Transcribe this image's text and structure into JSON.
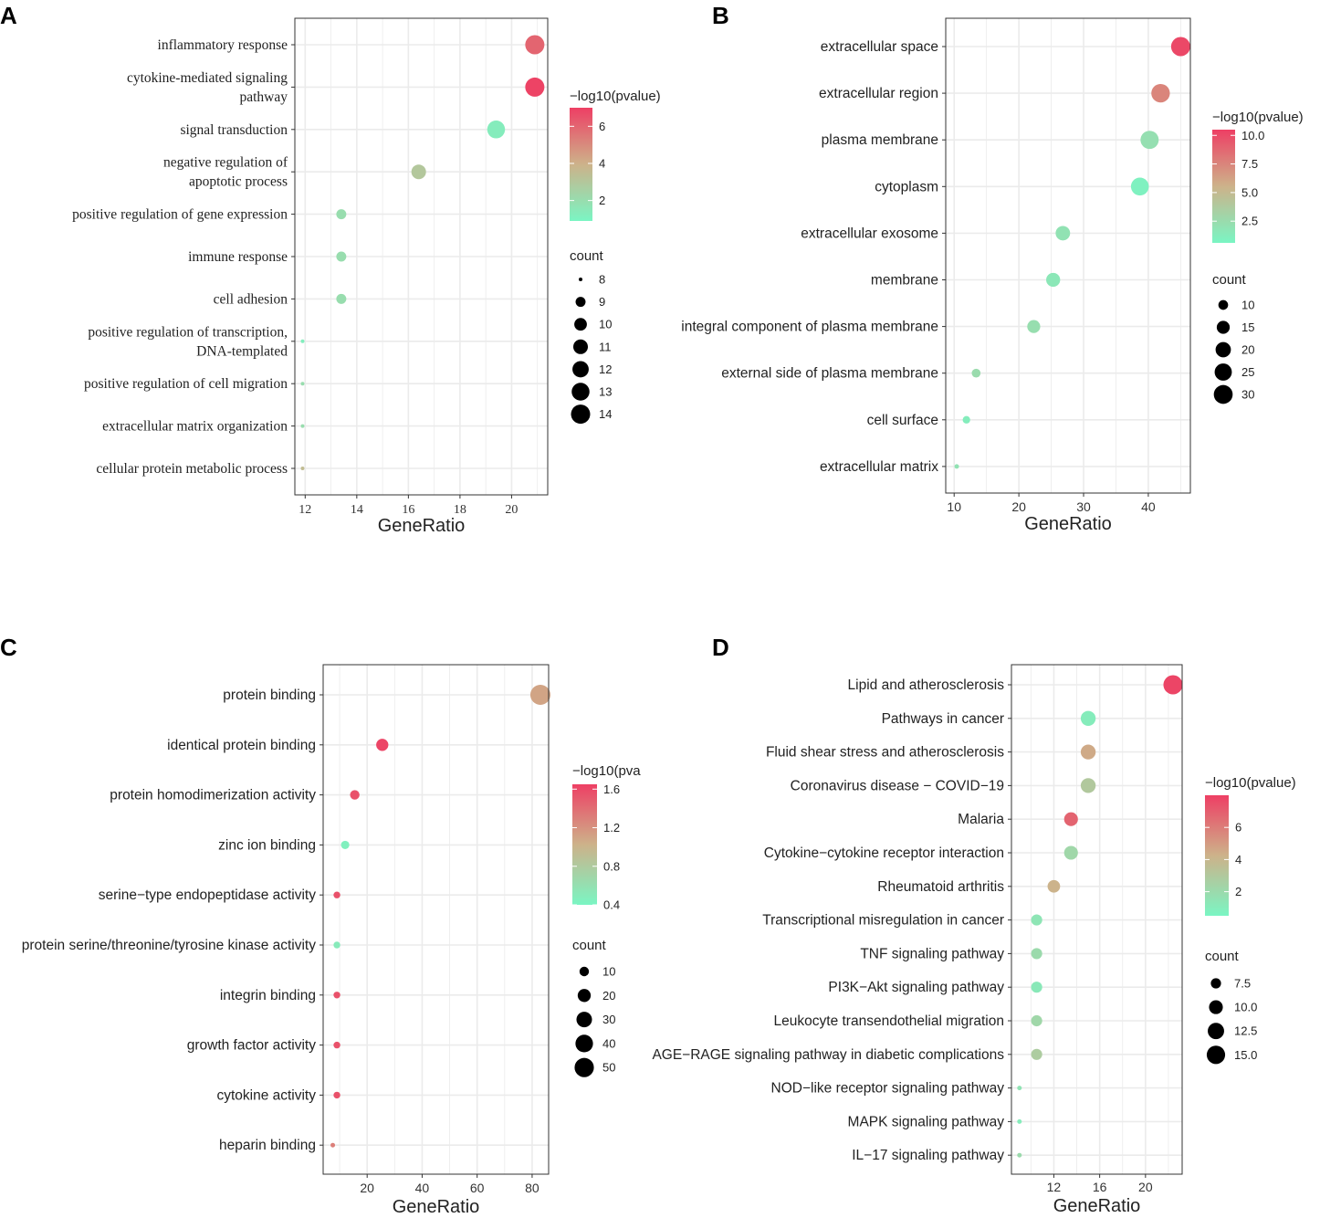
{
  "colors": {
    "low": "#7af5c3",
    "high": "#ee3f64",
    "grid": "#ebebeb",
    "border": "#333333"
  },
  "chart_data": [
    {
      "type": "scatter",
      "panel": "A",
      "font": "serif",
      "xlabel": "GeneRatio",
      "xlim": [
        11.6,
        21.4
      ],
      "xticks": [
        12,
        14,
        16,
        18,
        20
      ],
      "categories": [
        {
          "lines": [
            "inflammatory response"
          ],
          "x": 20.9,
          "count": 14,
          "logp": 6.0
        },
        {
          "lines": [
            "cytokine-mediated signaling",
            "pathway"
          ],
          "x": 20.9,
          "count": 14,
          "logp": 6.9
        },
        {
          "lines": [
            "signal transduction"
          ],
          "x": 19.4,
          "count": 13,
          "logp": 1.3
        },
        {
          "lines": [
            "negative regulation of",
            "apoptotic process"
          ],
          "x": 16.4,
          "count": 11,
          "logp": 3.0
        },
        {
          "lines": [
            "positive regulation of gene expression"
          ],
          "x": 13.4,
          "count": 9,
          "logp": 2.0
        },
        {
          "lines": [
            "immune response"
          ],
          "x": 13.4,
          "count": 9,
          "logp": 2.0
        },
        {
          "lines": [
            "cell adhesion"
          ],
          "x": 13.4,
          "count": 9,
          "logp": 2.0
        },
        {
          "lines": [
            "positive regulation of transcription,",
            "DNA-templated"
          ],
          "x": 11.9,
          "count": 8,
          "logp": 1.2
        },
        {
          "lines": [
            "positive regulation of cell migration"
          ],
          "x": 11.9,
          "count": 8,
          "logp": 2.0
        },
        {
          "lines": [
            "extracellular matrix organization"
          ],
          "x": 11.9,
          "count": 8,
          "logp": 2.0
        },
        {
          "lines": [
            "cellular protein metabolic process"
          ],
          "x": 11.9,
          "count": 8,
          "logp": 3.5
        }
      ],
      "color_legend": {
        "title": "−log10(pvalue)",
        "min": 0.9,
        "max": 7.0,
        "ticks": [
          {
            "v": 6,
            "label": "6"
          },
          {
            "v": 4,
            "label": "4"
          },
          {
            "v": 2,
            "label": "2"
          }
        ]
      },
      "size_legend": {
        "title": "count",
        "min": 8,
        "max": 14,
        "items": [
          {
            "v": 8,
            "label": "8"
          },
          {
            "v": 9,
            "label": "9"
          },
          {
            "v": 10,
            "label": "10"
          },
          {
            "v": 11,
            "label": "11"
          },
          {
            "v": 12,
            "label": "12"
          },
          {
            "v": 13,
            "label": "13"
          },
          {
            "v": 14,
            "label": "14"
          }
        ]
      }
    },
    {
      "type": "scatter",
      "panel": "B",
      "font": "sans",
      "xlabel": "GeneRatio",
      "xlim": [
        8.7,
        46.5
      ],
      "xticks": [
        10,
        20,
        30,
        40
      ],
      "categories": [
        {
          "lines": [
            "extracellular space"
          ],
          "x": 45.0,
          "count": 31,
          "logp": 10.1
        },
        {
          "lines": [
            "extracellular region"
          ],
          "x": 41.9,
          "count": 29,
          "logp": 7.5
        },
        {
          "lines": [
            "plasma membrane"
          ],
          "x": 40.2,
          "count": 28,
          "logp": 2.2
        },
        {
          "lines": [
            "cytoplasm"
          ],
          "x": 38.7,
          "count": 27,
          "logp": 0.9
        },
        {
          "lines": [
            "extracellular exosome"
          ],
          "x": 26.8,
          "count": 18,
          "logp": 2.0
        },
        {
          "lines": [
            "membrane"
          ],
          "x": 25.3,
          "count": 17,
          "logp": 1.6
        },
        {
          "lines": [
            "integral component of plasma membrane"
          ],
          "x": 22.3,
          "count": 15,
          "logp": 2.3
        },
        {
          "lines": [
            "external side of plasma membrane"
          ],
          "x": 13.4,
          "count": 9,
          "logp": 2.5
        },
        {
          "lines": [
            "cell surface"
          ],
          "x": 11.9,
          "count": 8,
          "logp": 1.2
        },
        {
          "lines": [
            "extracellular matrix"
          ],
          "x": 10.4,
          "count": 7,
          "logp": 2.0
        }
      ],
      "color_legend": {
        "title": "−log10(pvalue)",
        "min": 0.6,
        "max": 10.5,
        "ticks": [
          {
            "v": 10,
            "label": "10.0"
          },
          {
            "v": 7.5,
            "label": "7.5"
          },
          {
            "v": 5,
            "label": "5.0"
          },
          {
            "v": 2.5,
            "label": "2.5"
          }
        ]
      },
      "size_legend": {
        "title": "count",
        "min": 7,
        "max": 31,
        "items": [
          {
            "v": 10,
            "label": "10"
          },
          {
            "v": 15,
            "label": "15"
          },
          {
            "v": 20,
            "label": "20"
          },
          {
            "v": 25,
            "label": "25"
          },
          {
            "v": 30,
            "label": "30"
          }
        ]
      }
    },
    {
      "type": "scatter",
      "panel": "C",
      "font": "sans",
      "xlabel": "GeneRatio",
      "xlim": [
        4.0,
        86.0
      ],
      "xticks": [
        20,
        40,
        60,
        80
      ],
      "categories": [
        {
          "lines": [
            "protein binding"
          ],
          "x": 83.0,
          "count": 55,
          "logp": 1.1
        },
        {
          "lines": [
            "identical protein binding"
          ],
          "x": 25.5,
          "count": 17,
          "logp": 1.62
        },
        {
          "lines": [
            "protein homodimerization activity"
          ],
          "x": 15.5,
          "count": 10,
          "logp": 1.55
        },
        {
          "lines": [
            "zinc ion binding"
          ],
          "x": 12.0,
          "count": 8,
          "logp": 0.45
        },
        {
          "lines": [
            "serine−type endopeptidase activity"
          ],
          "x": 9.0,
          "count": 6,
          "logp": 1.55
        },
        {
          "lines": [
            "protein serine/threonine/tyrosine kinase activity"
          ],
          "x": 9.0,
          "count": 6,
          "logp": 0.5
        },
        {
          "lines": [
            "integrin binding"
          ],
          "x": 9.0,
          "count": 6,
          "logp": 1.55
        },
        {
          "lines": [
            "growth factor activity"
          ],
          "x": 9.0,
          "count": 6,
          "logp": 1.55
        },
        {
          "lines": [
            "cytokine activity"
          ],
          "x": 9.0,
          "count": 6,
          "logp": 1.55
        },
        {
          "lines": [
            "heparin binding"
          ],
          "x": 7.5,
          "count": 5,
          "logp": 1.3
        }
      ],
      "color_legend": {
        "title": "−log10(pva",
        "min": 0.4,
        "max": 1.65,
        "ticks": [
          {
            "v": 1.6,
            "label": "1.6"
          },
          {
            "v": 1.2,
            "label": "1.2"
          },
          {
            "v": 0.8,
            "label": "0.8"
          },
          {
            "v": 0.4,
            "label": "0.4"
          }
        ]
      },
      "size_legend": {
        "title": "count",
        "min": 5,
        "max": 55,
        "items": [
          {
            "v": 10,
            "label": "10"
          },
          {
            "v": 20,
            "label": "20"
          },
          {
            "v": 30,
            "label": "30"
          },
          {
            "v": 40,
            "label": "40"
          },
          {
            "v": 50,
            "label": "50"
          }
        ]
      }
    },
    {
      "type": "scatter",
      "panel": "D",
      "font": "sans",
      "xlabel": "GeneRatio",
      "xlim": [
        8.3,
        23.2
      ],
      "xticks": [
        12,
        16,
        20
      ],
      "categories": [
        {
          "lines": [
            "Lipid and atherosclerosis"
          ],
          "x": 22.4,
          "count": 16,
          "logp": 7.8
        },
        {
          "lines": [
            "Pathways in cancer"
          ],
          "x": 15.0,
          "count": 11,
          "logp": 1.0
        },
        {
          "lines": [
            "Fluid shear stress and atherosclerosis"
          ],
          "x": 15.0,
          "count": 11,
          "logp": 4.5
        },
        {
          "lines": [
            "Coronavirus disease − COVID−19"
          ],
          "x": 15.0,
          "count": 11,
          "logp": 3.0
        },
        {
          "lines": [
            "Malaria"
          ],
          "x": 13.5,
          "count": 10,
          "logp": 6.8
        },
        {
          "lines": [
            "Cytokine−cytokine receptor interaction"
          ],
          "x": 13.5,
          "count": 10,
          "logp": 2.2
        },
        {
          "lines": [
            "Rheumatoid arthritis"
          ],
          "x": 12.0,
          "count": 9,
          "logp": 4.2
        },
        {
          "lines": [
            "Transcriptional misregulation in cancer"
          ],
          "x": 10.5,
          "count": 8,
          "logp": 1.4
        },
        {
          "lines": [
            "TNF signaling pathway"
          ],
          "x": 10.5,
          "count": 8,
          "logp": 2.0
        },
        {
          "lines": [
            "PI3K−Akt signaling pathway"
          ],
          "x": 10.5,
          "count": 8,
          "logp": 1.2
        },
        {
          "lines": [
            "Leukocyte transendothelial migration"
          ],
          "x": 10.5,
          "count": 8,
          "logp": 2.2
        },
        {
          "lines": [
            "AGE−RAGE signaling pathway in diabetic complications"
          ],
          "x": 10.5,
          "count": 8,
          "logp": 2.8
        },
        {
          "lines": [
            "NOD−like receptor signaling pathway"
          ],
          "x": 9.0,
          "count": 6,
          "logp": 1.5
        },
        {
          "lines": [
            "MAPK signaling pathway"
          ],
          "x": 9.0,
          "count": 6,
          "logp": 1.0
        },
        {
          "lines": [
            "IL−17 signaling pathway"
          ],
          "x": 9.0,
          "count": 6,
          "logp": 2.0
        }
      ],
      "color_legend": {
        "title": "−log10(pvalue)",
        "min": 0.5,
        "max": 8.0,
        "ticks": [
          {
            "v": 6,
            "label": "6"
          },
          {
            "v": 4,
            "label": "4"
          },
          {
            "v": 2,
            "label": "2"
          }
        ]
      },
      "size_legend": {
        "title": "count",
        "min": 6,
        "max": 16,
        "items": [
          {
            "v": 7.5,
            "label": "7.5"
          },
          {
            "v": 10,
            "label": "10.0"
          },
          {
            "v": 12.5,
            "label": "12.5"
          },
          {
            "v": 15,
            "label": "15.0"
          }
        ]
      }
    }
  ]
}
